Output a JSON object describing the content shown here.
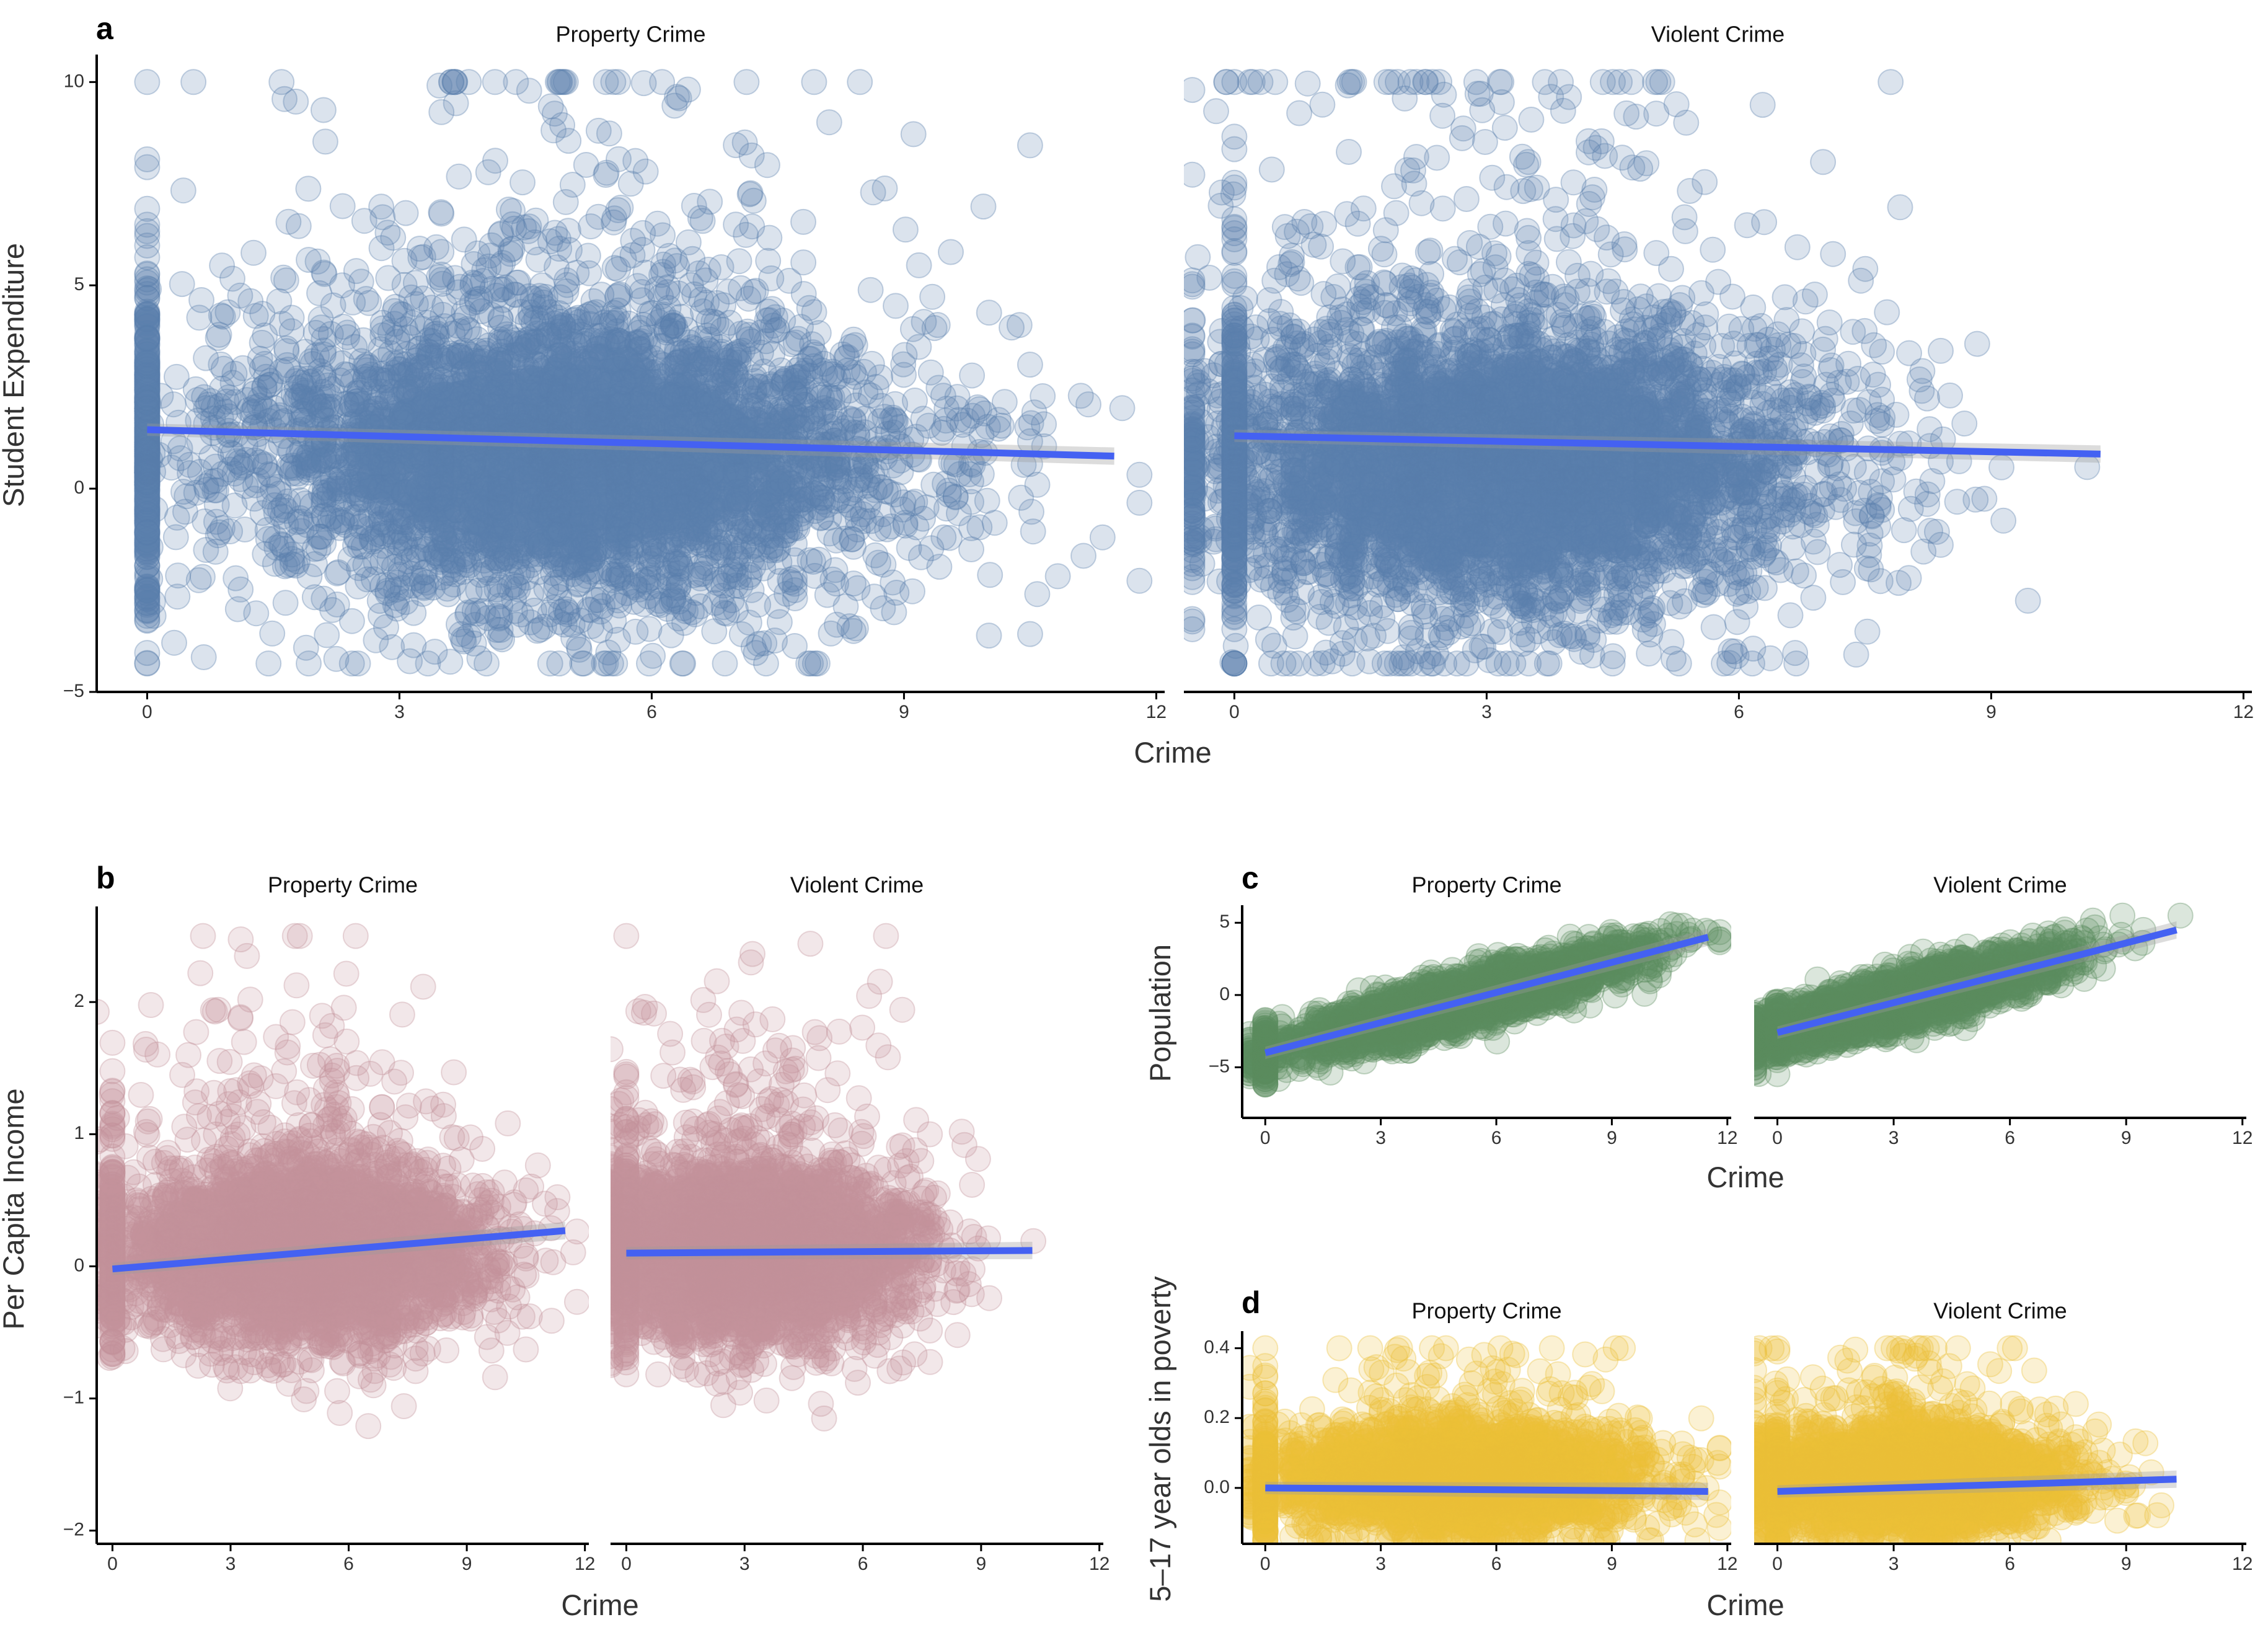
{
  "chart_data": [
    {
      "id": "a",
      "panel_label": "a",
      "type": "scatter",
      "ylabel": "Student Expenditure",
      "xlabel": "Crime",
      "xlim": [
        -0.6,
        12.1
      ],
      "ylim": [
        -5,
        10.6
      ],
      "xticks": [
        0,
        3,
        6,
        9,
        12
      ],
      "yticks": [
        -5,
        0,
        5,
        10
      ],
      "ytick_labels": [
        "−5",
        "0",
        "5",
        "10"
      ],
      "grid": false,
      "point_color": "#5a7fad",
      "fit_color": "#4461f2",
      "facets": [
        {
          "title": "Property Crime",
          "x_center": 5.0,
          "x_sd": 2.0,
          "x_min": 0,
          "x_max": 11.8,
          "y_center": 0.8,
          "y_sd": 2.0,
          "y_min": -4.3,
          "y_max": 10,
          "fit": [
            [
              0,
              1.45
            ],
            [
              11.5,
              0.8
            ]
          ]
        },
        {
          "title": "Violent Crime",
          "x_center": 3.2,
          "x_sd": 1.9,
          "x_min": -0.5,
          "x_max": 10.4,
          "y_center": 0.5,
          "y_sd": 2.0,
          "y_min": -4.3,
          "y_max": 10,
          "fit": [
            [
              0,
              1.3
            ],
            [
              10.3,
              0.85
            ]
          ]
        }
      ]
    },
    {
      "id": "b",
      "panel_label": "b",
      "type": "scatter",
      "ylabel": "Per Capita Income",
      "xlabel": "Crime",
      "xlim": [
        -0.4,
        12.1
      ],
      "ylim": [
        -2.1,
        2.7
      ],
      "xticks": [
        0,
        3,
        6,
        9,
        12
      ],
      "yticks": [
        -2,
        -1,
        0,
        1,
        2
      ],
      "ytick_labels": [
        "−2",
        "−1",
        "0",
        "1",
        "2"
      ],
      "grid": false,
      "point_color": "#c4919a",
      "fit_color": "#4461f2",
      "facets": [
        {
          "title": "Property Crime",
          "x_center": 4.8,
          "x_sd": 2.2,
          "x_min": -0.4,
          "x_max": 11.8,
          "y_center": 0.1,
          "y_sd": 0.35,
          "y_min": -1.6,
          "y_max": 2.5,
          "fit": [
            [
              0,
              -0.02
            ],
            [
              11.5,
              0.27
            ]
          ]
        },
        {
          "title": "Violent Crime",
          "x_center": 3.0,
          "x_sd": 2.1,
          "x_min": -0.4,
          "x_max": 10.4,
          "y_center": 0.1,
          "y_sd": 0.35,
          "y_min": -1.6,
          "y_max": 2.5,
          "fit": [
            [
              0,
              0.1
            ],
            [
              10.3,
              0.12
            ]
          ]
        }
      ]
    },
    {
      "id": "c",
      "panel_label": "c",
      "type": "scatter",
      "ylabel": "Population",
      "xlabel": "Crime",
      "xlim": [
        -0.6,
        12.1
      ],
      "ylim": [
        -8.5,
        6
      ],
      "xticks": [
        0,
        3,
        6,
        9,
        12
      ],
      "yticks": [
        -5,
        0,
        5
      ],
      "ytick_labels": [
        "−5",
        "0",
        "5"
      ],
      "grid": false,
      "point_color": "#5c8c5f",
      "fit_color": "#4461f2",
      "facets": [
        {
          "title": "Property Crime",
          "x_center": 5.0,
          "x_sd": 2.3,
          "x_min": -0.4,
          "x_max": 11.8,
          "y_center": 0.0,
          "y_sd": 0.9,
          "y_min": -8,
          "y_max": 5.5,
          "fit": [
            [
              0,
              -4.0
            ],
            [
              11.5,
              4.0
            ]
          ],
          "linear": true,
          "slope": 0.7,
          "intercept": -4.0
        },
        {
          "title": "Violent Crime",
          "x_center": 3.0,
          "x_sd": 2.2,
          "x_min": -0.6,
          "x_max": 10.4,
          "y_center": 0.0,
          "y_sd": 0.9,
          "y_min": -8,
          "y_max": 5.5,
          "fit": [
            [
              0,
              -2.6
            ],
            [
              10.3,
              4.5
            ]
          ],
          "linear": true,
          "slope": 0.69,
          "intercept": -2.6
        }
      ]
    },
    {
      "id": "d",
      "panel_label": "d",
      "type": "scatter",
      "ylabel": "5–17 year olds in poverty",
      "xlabel": "Crime",
      "xlim": [
        -0.6,
        12.1
      ],
      "ylim": [
        -0.16,
        0.44
      ],
      "xticks": [
        0,
        3,
        6,
        9,
        12
      ],
      "yticks": [
        0.0,
        0.2,
        0.4
      ],
      "ytick_labels": [
        "0.0",
        "0.2",
        "0.4"
      ],
      "grid": false,
      "point_color": "#ebbf38",
      "fit_color": "#4461f2",
      "facets": [
        {
          "title": "Property Crime",
          "x_center": 5.0,
          "x_sd": 2.3,
          "x_min": -0.4,
          "x_max": 11.8,
          "y_center": 0.02,
          "y_sd": 0.08,
          "y_min": -0.15,
          "y_max": 0.4,
          "fit": [
            [
              0,
              0.0
            ],
            [
              11.5,
              -0.01
            ]
          ]
        },
        {
          "title": "Violent Crime",
          "x_center": 3.0,
          "x_sd": 2.2,
          "x_min": -0.6,
          "x_max": 10.4,
          "y_center": 0.02,
          "y_sd": 0.08,
          "y_min": -0.15,
          "y_max": 0.4,
          "fit": [
            [
              0,
              -0.01
            ],
            [
              10.3,
              0.025
            ]
          ]
        }
      ]
    }
  ]
}
